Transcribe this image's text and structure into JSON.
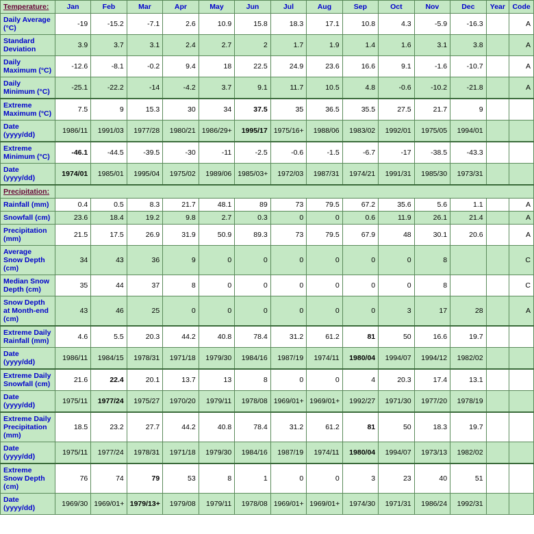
{
  "headers": [
    "Jan",
    "Feb",
    "Mar",
    "Apr",
    "May",
    "Jun",
    "Jul",
    "Aug",
    "Sep",
    "Oct",
    "Nov",
    "Dec",
    "Year",
    "Code"
  ],
  "sections": [
    {
      "title": "Temperature:",
      "rows": [
        {
          "label": "Daily Average (°C)",
          "parity": "odd",
          "values": [
            "-19",
            "-15.2",
            "-7.1",
            "2.6",
            "10.9",
            "15.8",
            "18.3",
            "17.1",
            "10.8",
            "4.3",
            "-5.9",
            "-16.3"
          ],
          "bold": [],
          "year": "",
          "code": "A"
        },
        {
          "label": "Standard Deviation",
          "parity": "even",
          "values": [
            "3.9",
            "3.7",
            "3.1",
            "2.4",
            "2.7",
            "2",
            "1.7",
            "1.9",
            "1.4",
            "1.6",
            "3.1",
            "3.8"
          ],
          "bold": [],
          "year": "",
          "code": "A"
        },
        {
          "label": "Daily Maximum (°C)",
          "parity": "odd",
          "values": [
            "-12.6",
            "-8.1",
            "-0.2",
            "9.4",
            "18",
            "22.5",
            "24.9",
            "23.6",
            "16.6",
            "9.1",
            "-1.6",
            "-10.7"
          ],
          "bold": [],
          "year": "",
          "code": "A"
        },
        {
          "label": "Daily Minimum (°C)",
          "parity": "even",
          "values": [
            "-25.1",
            "-22.2",
            "-14",
            "-4.2",
            "3.7",
            "9.1",
            "11.7",
            "10.5",
            "4.8",
            "-0.6",
            "-10.2",
            "-21.8"
          ],
          "bold": [],
          "year": "",
          "code": "A"
        },
        {
          "label": "Extreme Maximum (°C)",
          "parity": "odd",
          "thick": true,
          "values": [
            "7.5",
            "9",
            "15.3",
            "30",
            "34",
            "37.5",
            "35",
            "36.5",
            "35.5",
            "27.5",
            "21.7",
            "9"
          ],
          "bold": [
            5
          ],
          "year": "",
          "code": ""
        },
        {
          "label": "Date (yyyy/dd)",
          "parity": "even",
          "values": [
            "1986/11",
            "1991/03",
            "1977/28",
            "1980/21",
            "1986/29+",
            "1995/17",
            "1975/16+",
            "1988/06",
            "1983/02",
            "1992/01",
            "1975/05",
            "1994/01"
          ],
          "bold": [
            5
          ],
          "year": "",
          "code": ""
        },
        {
          "label": "Extreme Minimum (°C)",
          "parity": "odd",
          "thick": true,
          "values": [
            "-46.1",
            "-44.5",
            "-39.5",
            "-30",
            "-11",
            "-2.5",
            "-0.6",
            "-1.5",
            "-6.7",
            "-17",
            "-38.5",
            "-43.3"
          ],
          "bold": [
            0
          ],
          "year": "",
          "code": ""
        },
        {
          "label": "Date (yyyy/dd)",
          "parity": "even",
          "values": [
            "1974/01",
            "1985/01",
            "1995/04",
            "1975/02",
            "1989/06",
            "1985/03+",
            "1972/03",
            "1987/31",
            "1974/21",
            "1991/31",
            "1985/30",
            "1973/31"
          ],
          "bold": [
            0
          ],
          "year": "",
          "code": ""
        }
      ]
    },
    {
      "title": "Precipitation:",
      "thick": true,
      "rows": [
        {
          "label": "Rainfall (mm)",
          "parity": "odd",
          "values": [
            "0.4",
            "0.5",
            "8.3",
            "21.7",
            "48.1",
            "89",
            "73",
            "79.5",
            "67.2",
            "35.6",
            "5.6",
            "1.1"
          ],
          "bold": [],
          "year": "",
          "code": "A"
        },
        {
          "label": "Snowfall (cm)",
          "parity": "even",
          "values": [
            "23.6",
            "18.4",
            "19.2",
            "9.8",
            "2.7",
            "0.3",
            "0",
            "0",
            "0.6",
            "11.9",
            "26.1",
            "21.4"
          ],
          "bold": [],
          "year": "",
          "code": "A"
        },
        {
          "label": "Precipitation (mm)",
          "parity": "odd",
          "values": [
            "21.5",
            "17.5",
            "26.9",
            "31.9",
            "50.9",
            "89.3",
            "73",
            "79.5",
            "67.9",
            "48",
            "30.1",
            "20.6"
          ],
          "bold": [],
          "year": "",
          "code": "A"
        },
        {
          "label": "Average Snow Depth (cm)",
          "parity": "even",
          "values": [
            "34",
            "43",
            "36",
            "9",
            "0",
            "0",
            "0",
            "0",
            "0",
            "0",
            "8",
            ""
          ],
          "bold": [],
          "year": "",
          "code": "C"
        },
        {
          "label": "Median Snow Depth (cm)",
          "parity": "odd",
          "values": [
            "35",
            "44",
            "37",
            "8",
            "0",
            "0",
            "0",
            "0",
            "0",
            "0",
            "8",
            ""
          ],
          "bold": [],
          "year": "",
          "code": "C"
        },
        {
          "label": "Snow Depth at Month-end (cm)",
          "parity": "even",
          "values": [
            "43",
            "46",
            "25",
            "0",
            "0",
            "0",
            "0",
            "0",
            "0",
            "3",
            "17",
            "28"
          ],
          "bold": [],
          "year": "",
          "code": "A"
        },
        {
          "label": "Extreme Daily Rainfall (mm)",
          "parity": "odd",
          "thick": true,
          "values": [
            "4.6",
            "5.5",
            "20.3",
            "44.2",
            "40.8",
            "78.4",
            "31.2",
            "61.2",
            "81",
            "50",
            "16.6",
            "19.7"
          ],
          "bold": [
            8
          ],
          "year": "",
          "code": ""
        },
        {
          "label": "Date (yyyy/dd)",
          "parity": "even",
          "values": [
            "1986/11",
            "1984/15",
            "1978/31",
            "1971/18",
            "1979/30",
            "1984/16",
            "1987/19",
            "1974/11",
            "1980/04",
            "1994/07",
            "1994/12",
            "1982/02"
          ],
          "bold": [
            8
          ],
          "year": "",
          "code": ""
        },
        {
          "label": "Extreme Daily Snowfall (cm)",
          "parity": "odd",
          "thick": true,
          "values": [
            "21.6",
            "22.4",
            "20.1",
            "13.7",
            "13",
            "8",
            "0",
            "0",
            "4",
            "20.3",
            "17.4",
            "13.1"
          ],
          "bold": [
            1
          ],
          "year": "",
          "code": ""
        },
        {
          "label": "Date (yyyy/dd)",
          "parity": "even",
          "values": [
            "1975/11",
            "1977/24",
            "1975/27",
            "1970/20",
            "1979/11",
            "1978/08",
            "1969/01+",
            "1969/01+",
            "1992/27",
            "1971/30",
            "1977/20",
            "1978/19"
          ],
          "bold": [
            1
          ],
          "year": "",
          "code": ""
        },
        {
          "label": "Extreme Daily Precipitation (mm)",
          "parity": "odd",
          "thick": true,
          "values": [
            "18.5",
            "23.2",
            "27.7",
            "44.2",
            "40.8",
            "78.4",
            "31.2",
            "61.2",
            "81",
            "50",
            "18.3",
            "19.7"
          ],
          "bold": [
            8
          ],
          "year": "",
          "code": ""
        },
        {
          "label": "Date (yyyy/dd)",
          "parity": "even",
          "values": [
            "1975/11",
            "1977/24",
            "1978/31",
            "1971/18",
            "1979/30",
            "1984/16",
            "1987/19",
            "1974/11",
            "1980/04",
            "1994/07",
            "1973/13",
            "1982/02"
          ],
          "bold": [
            8
          ],
          "year": "",
          "code": ""
        },
        {
          "label": "Extreme Snow Depth (cm)",
          "parity": "odd",
          "thick": true,
          "values": [
            "76",
            "74",
            "79",
            "53",
            "8",
            "1",
            "0",
            "0",
            "3",
            "23",
            "40",
            "51"
          ],
          "bold": [
            2
          ],
          "year": "",
          "code": ""
        },
        {
          "label": "Date (yyyy/dd)",
          "parity": "even",
          "values": [
            "1969/30",
            "1969/01+",
            "1979/13+",
            "1979/08",
            "1979/11",
            "1978/08",
            "1969/01+",
            "1969/01+",
            "1974/30",
            "1971/31",
            "1986/24",
            "1992/31"
          ],
          "bold": [
            2
          ],
          "year": "",
          "code": ""
        }
      ]
    }
  ]
}
